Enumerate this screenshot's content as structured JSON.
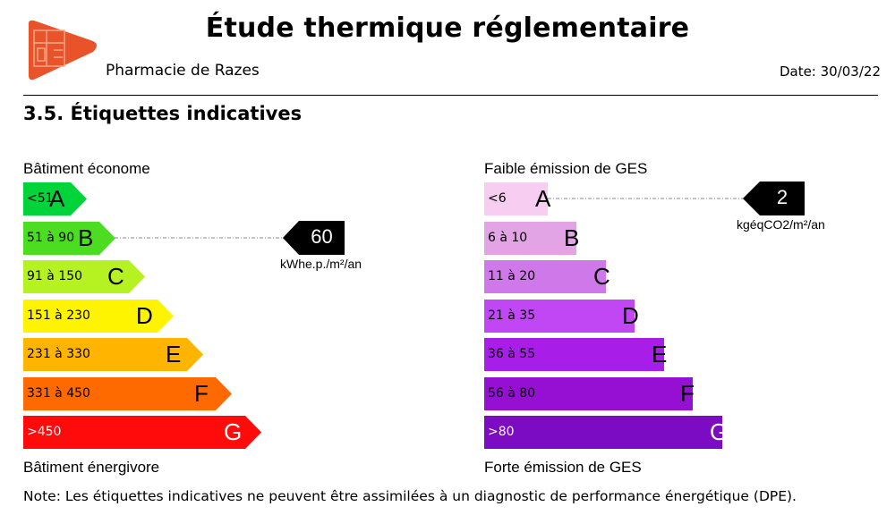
{
  "header": {
    "title": "Étude thermique réglementaire",
    "subject": "Pharmacie de Razes",
    "date": "Date: 30/03/22",
    "logo_color": "#e8532a"
  },
  "section_title": "3.5. Étiquettes indicatives",
  "energy": {
    "top_label": "Bâtiment économe",
    "bottom_label": "Bâtiment énergivore",
    "value": "60",
    "unit": "kWhe.p./m²/an",
    "current_class": "B",
    "classes": [
      {
        "range": "<51",
        "letter": "A",
        "color": "#00d43a"
      },
      {
        "range": "51 à 90",
        "letter": "B",
        "color": "#4cdc22"
      },
      {
        "range": "91 à 150",
        "letter": "C",
        "color": "#b6f221"
      },
      {
        "range": "151 à 230",
        "letter": "D",
        "color": "#fff400"
      },
      {
        "range": "231 à 330",
        "letter": "E",
        "color": "#ffb400"
      },
      {
        "range": "331 à 450",
        "letter": "F",
        "color": "#ff6a00"
      },
      {
        "range": ">450",
        "letter": "G",
        "color": "#ff0b0b"
      }
    ]
  },
  "ges": {
    "top_label": "Faible émission de GES",
    "bottom_label": "Forte émission de GES",
    "value": "2",
    "unit": "kgéqCO2/m²/an",
    "current_class": "A",
    "classes": [
      {
        "range": "<6",
        "letter": "A",
        "color": "#f7cdf2"
      },
      {
        "range": "6 à 10",
        "letter": "B",
        "color": "#e3a4e6"
      },
      {
        "range": "11 à 20",
        "letter": "C",
        "color": "#cf78ea"
      },
      {
        "range": "21 à 35",
        "letter": "D",
        "color": "#c047f3"
      },
      {
        "range": "36 à 55",
        "letter": "E",
        "color": "#a81de7"
      },
      {
        "range": "56 à 80",
        "letter": "F",
        "color": "#9510d3"
      },
      {
        "range": ">80",
        "letter": "G",
        "color": "#7c0bc4"
      }
    ]
  },
  "note": "Note: Les étiquettes indicatives ne peuvent être assimilées à un diagnostic de performance énergétique (DPE)."
}
